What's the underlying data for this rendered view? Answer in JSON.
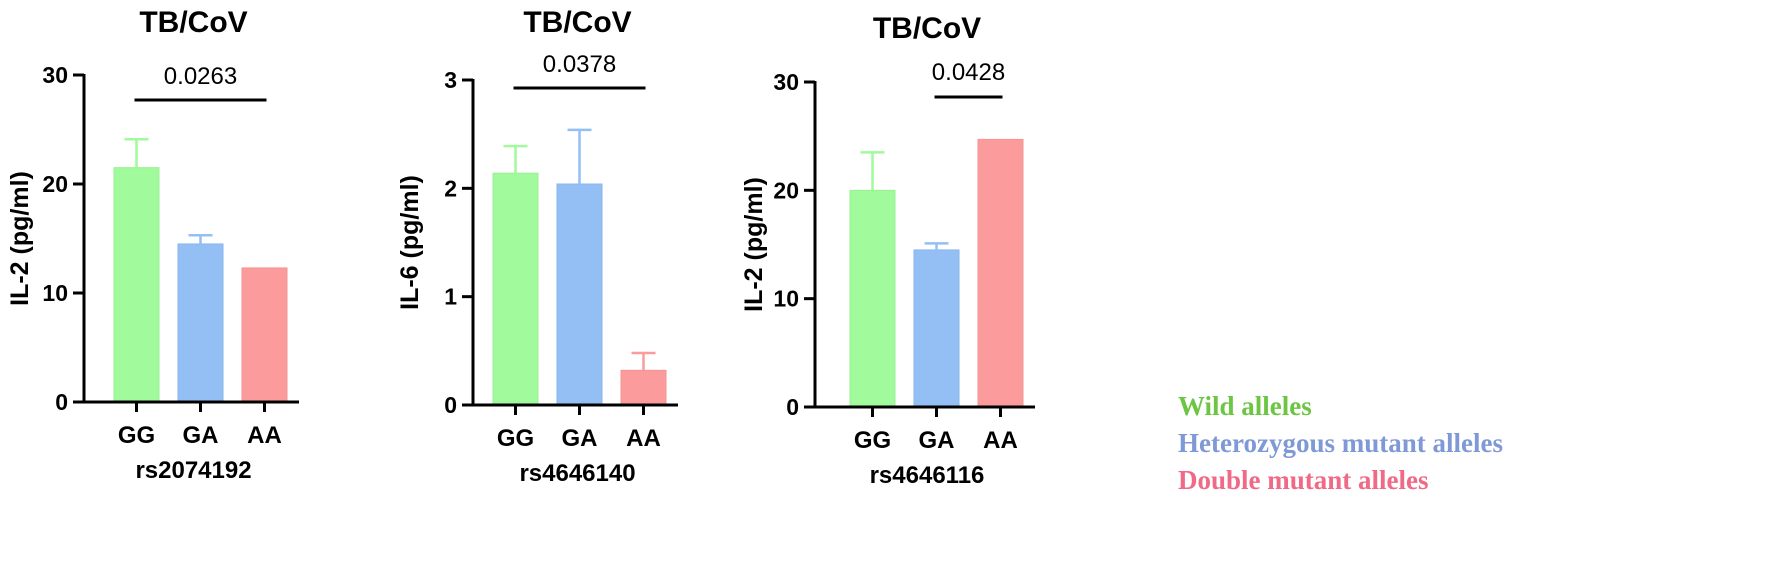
{
  "chart_data": [
    {
      "type": "bar",
      "title": "TB/CoV",
      "xlabel": "rs2074192",
      "ylabel": "IL-2 (pg/ml)",
      "categories": [
        "GG",
        "GA",
        "AA"
      ],
      "values": [
        21.5,
        14.5,
        12.3
      ],
      "errors": [
        2.6,
        0.8,
        0
      ],
      "ylim": [
        0,
        30
      ],
      "yticks": [
        "0",
        "10",
        "20",
        "30"
      ],
      "significance": {
        "from": "GG",
        "to": "AA",
        "label": "0.0263"
      }
    },
    {
      "type": "bar",
      "title": "TB/CoV",
      "xlabel": "rs4646140",
      "ylabel": "IL-6 (pg/ml)",
      "categories": [
        "GG",
        "GA",
        "AA"
      ],
      "values": [
        2.14,
        2.04,
        0.32
      ],
      "errors": [
        0.25,
        0.5,
        0.16
      ],
      "ylim": [
        0,
        3
      ],
      "yticks": [
        "0",
        "1",
        "2",
        "3"
      ],
      "significance": {
        "from": "GG",
        "to": "AA",
        "label": "0.0378"
      }
    },
    {
      "type": "bar",
      "title": "TB/CoV",
      "xlabel": "rs4646116",
      "ylabel": "IL-2 (pg/ml)",
      "categories": [
        "GG",
        "GA",
        "AA"
      ],
      "values": [
        20.0,
        14.5,
        24.7
      ],
      "errors": [
        3.5,
        0.6,
        0
      ],
      "ylim": [
        0,
        30
      ],
      "yticks": [
        "0",
        "10",
        "20",
        "30"
      ],
      "significance": {
        "from": "GA",
        "to": "AA",
        "label": "0.0428"
      }
    }
  ],
  "colors": {
    "GG": "#a1fa9b",
    "GA": "#93bff5",
    "AA": "#fb9b9b",
    "GG_edge": "#9af095",
    "GA_edge": "#8ab6ec",
    "AA_edge": "#f39494"
  },
  "legend": {
    "wild": {
      "label": "Wild alleles",
      "color": "#6cc644"
    },
    "hetero": {
      "label": "Heterozygous mutant alleles",
      "color": "#7f98d6"
    },
    "double": {
      "label": "Double mutant alleles",
      "color": "#f06a88"
    }
  }
}
